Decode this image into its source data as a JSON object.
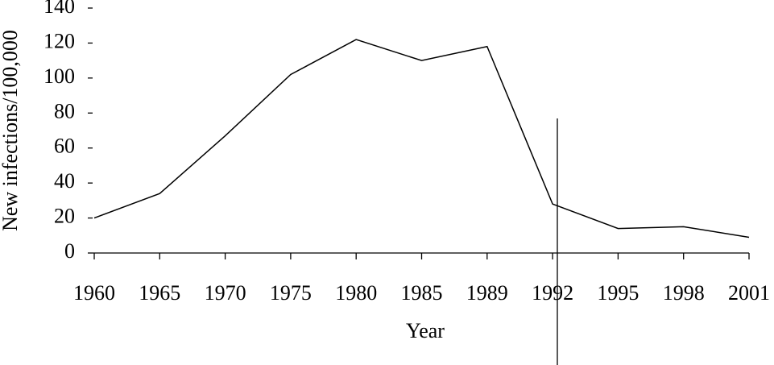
{
  "chart_data": {
    "type": "line",
    "x_label": "Year",
    "y_label": "New infections/100,000",
    "categories": [
      "1960",
      "1965",
      "1970",
      "1975",
      "1980",
      "1985",
      "1989",
      "1992",
      "1995",
      "1998",
      "2001"
    ],
    "values": [
      20,
      34,
      67,
      102,
      122,
      110,
      118,
      28,
      14,
      15,
      9
    ],
    "color": "#000000",
    "ylim": [
      0,
      140
    ],
    "yticks": [
      0,
      20,
      40,
      60,
      80,
      100,
      120,
      140
    ]
  }
}
